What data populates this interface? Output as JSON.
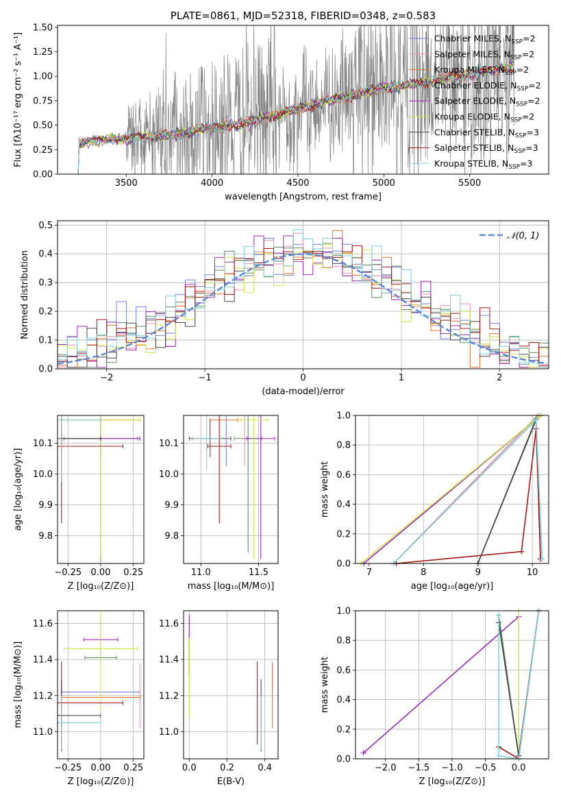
{
  "colors": {
    "chabrier_miles": "#6f7fe0",
    "salpeter_miles": "#ef8fb0",
    "kroupa_miles": "#e8702a",
    "chabrier_elodie": "#5c8a5c",
    "salpeter_elodie": "#9a28b8",
    "kroupa_elodie": "#cbe84a",
    "chabrier_stelib": "#444444",
    "salpeter_stelib": "#a01616",
    "kroupa_stelib": "#7fd0d8",
    "normal": "#5b88d6",
    "grid": "#b0b0b0",
    "data": "#808080"
  },
  "chart_data": [
    {
      "id": "spectrum",
      "type": "line",
      "title": "PLATE=0861, MJD=52318, FIBERID=0348, z=0.583",
      "xlabel": "wavelength [Angstrom, rest frame]",
      "ylabel": "Flux [fλ10⁻¹⁷ erg cm⁻² s⁻¹ A⁻¹]",
      "xlim": [
        3100,
        5960
      ],
      "ylim": [
        0,
        1.52
      ],
      "xticks": [
        3500,
        4000,
        4500,
        5000,
        5500
      ],
      "yticks": [
        0.0,
        0.25,
        0.5,
        0.75,
        1.0,
        1.25,
        1.5
      ],
      "legend_position": "top-right",
      "legend": [
        {
          "label": "Chabrier MILES, N",
          "sub": "SSP",
          "tail": "=2",
          "color_key": "chabrier_miles"
        },
        {
          "label": "Salpeter MILES, N",
          "sub": "SSP",
          "tail": "=2",
          "color_key": "salpeter_miles"
        },
        {
          "label": "Kroupa MILES, N",
          "sub": "SSP",
          "tail": "=2",
          "color_key": "kroupa_miles"
        },
        {
          "label": "Chabrier ELODIE, N",
          "sub": "SSP",
          "tail": "=2",
          "color_key": "chabrier_elodie"
        },
        {
          "label": "Salpeter ELODIE, N",
          "sub": "SSP",
          "tail": "=2",
          "color_key": "salpeter_elodie"
        },
        {
          "label": "Kroupa ELODIE, N",
          "sub": "SSP",
          "tail": "=2",
          "color_key": "kroupa_elodie"
        },
        {
          "label": "Chabrier STELIB, N",
          "sub": "SSP",
          "tail": "=3",
          "color_key": "chabrier_stelib"
        },
        {
          "label": "Salpeter STELIB, N",
          "sub": "SSP",
          "tail": "=3",
          "color_key": "salpeter_stelib"
        },
        {
          "label": "Kroupa STELIB, N",
          "sub": "SSP",
          "tail": "=3",
          "color_key": "kroupa_stelib"
        }
      ],
      "continuum": [
        [
          3220,
          0.0
        ],
        [
          3225,
          0.3
        ],
        [
          3300,
          0.34
        ],
        [
          3400,
          0.36
        ],
        [
          3500,
          0.36
        ],
        [
          3600,
          0.38
        ],
        [
          3700,
          0.4
        ],
        [
          3800,
          0.4
        ],
        [
          3900,
          0.45
        ],
        [
          4000,
          0.47
        ],
        [
          4200,
          0.52
        ],
        [
          4400,
          0.62
        ],
        [
          4600,
          0.72
        ],
        [
          4800,
          0.8
        ],
        [
          5000,
          0.88
        ],
        [
          5200,
          0.93
        ],
        [
          5400,
          0.99
        ],
        [
          5600,
          1.05
        ],
        [
          5760,
          1.1
        ]
      ],
      "noise_regimes": [
        [
          3220,
          3500,
          0.03
        ],
        [
          3500,
          3650,
          0.25
        ],
        [
          3650,
          4400,
          0.45
        ],
        [
          4400,
          4800,
          0.3
        ],
        [
          4800,
          5760,
          0.5
        ]
      ]
    },
    {
      "id": "residuals",
      "type": "histogram",
      "xlabel": "(data-model)/error",
      "ylabel": "Normed distribution",
      "xlim": [
        -2.5,
        2.5
      ],
      "ylim": [
        0,
        0.515
      ],
      "xticks": [
        -2,
        -1,
        0,
        1,
        2
      ],
      "yticks": [
        0.0,
        0.1,
        0.2,
        0.3,
        0.4,
        0.5
      ],
      "legend_position": "top-right",
      "normal_label": "𝒩(0, 1)",
      "bin_width": 0.1
    },
    {
      "id": "age_vs_Z",
      "type": "errorbar",
      "xlabel": "Z [log₁₀(Z/Z⊙)]",
      "ylabel": "age  [log₁₀(age/yr)]",
      "xlim": [
        -0.33,
        0.33
      ],
      "ylim": [
        9.71,
        10.19
      ],
      "xticks": [
        -0.25,
        0.0,
        0.25
      ],
      "xtick_labels": [
        "−0.25",
        "0.00",
        "0.25"
      ],
      "yticks": [
        9.8,
        9.9,
        10.0,
        10.1
      ],
      "points": [
        {
          "c": "chabrier_miles",
          "x": 0.0,
          "y": 10.115,
          "xe": 0.3,
          "ye": 0.06
        },
        {
          "c": "salpeter_miles",
          "x": 0.0,
          "y": 10.115,
          "xe": 0.3,
          "ye": 0.06
        },
        {
          "c": "kroupa_miles",
          "x": 0.0,
          "y": 10.175,
          "xe": 0.3,
          "ye": 0.45
        },
        {
          "c": "chabrier_elodie",
          "x": 0.0,
          "y": 10.115,
          "xe": 0.28,
          "ye": 0.4
        },
        {
          "c": "salpeter_elodie",
          "x": 0.0,
          "y": 10.115,
          "xe": 0.3,
          "ye": 0.39
        },
        {
          "c": "kroupa_elodie",
          "x": 0.0,
          "y": 10.175,
          "xe": 0.3,
          "ye": 0.45
        },
        {
          "c": "chabrier_stelib",
          "x": -0.3,
          "y": 10.115,
          "xe": 0.3,
          "ye": 0.05
        },
        {
          "c": "salpeter_stelib",
          "x": -0.3,
          "y": 10.09,
          "xe": 0.47,
          "ye": 0.25
        },
        {
          "c": "kroupa_stelib",
          "x": -0.3,
          "y": 10.175,
          "xe": 0.3,
          "ye": 0.2
        }
      ]
    },
    {
      "id": "age_vs_mass",
      "type": "errorbar",
      "xlabel": "mass [log₁₀(M/M⊙)]",
      "ylabel": "",
      "xlim": [
        10.85,
        11.67
      ],
      "ylim": [
        9.71,
        10.19
      ],
      "xticks": [
        11.0,
        11.5
      ],
      "xtick_labels": [
        "11.0",
        "11.5"
      ],
      "yticks": [
        9.8,
        9.9,
        10.0,
        10.1
      ],
      "points": [
        {
          "c": "chabrier_miles",
          "x": 11.22,
          "y": 10.115,
          "xe": 0.0,
          "ye": 0.09
        },
        {
          "c": "salpeter_miles",
          "x": 11.38,
          "y": 10.115,
          "xe": 0.0,
          "ye": 0.09
        },
        {
          "c": "kroupa_miles",
          "x": 11.2,
          "y": 10.175,
          "xe": 0.12,
          "ye": 0.0
        },
        {
          "c": "chabrier_elodie",
          "x": 11.41,
          "y": 10.115,
          "xe": 0.12,
          "ye": 0.37
        },
        {
          "c": "salpeter_elodie",
          "x": 11.52,
          "y": 10.115,
          "xe": 0.12,
          "ye": 0.39
        },
        {
          "c": "kroupa_elodie",
          "x": 11.46,
          "y": 10.175,
          "xe": 0.12,
          "ye": 0.45
        },
        {
          "c": "chabrier_stelib",
          "x": 11.08,
          "y": 10.115,
          "xe": 0.18,
          "ye": 0.06
        },
        {
          "c": "salpeter_stelib",
          "x": 11.16,
          "y": 10.09,
          "xe": 0.1,
          "ye": 0.25
        },
        {
          "c": "kroupa_stelib",
          "x": 11.05,
          "y": 10.115,
          "xe": 0.12,
          "ye": 0.1
        }
      ]
    },
    {
      "id": "weight_vs_age",
      "type": "line",
      "xlabel": "age  [log₁₀(age/yr)]",
      "ylabel": "mass weight",
      "xlim": [
        6.75,
        10.3
      ],
      "ylim": [
        0.0,
        1.0
      ],
      "xticks": [
        7,
        8,
        9,
        10
      ],
      "yticks": [
        0.0,
        0.2,
        0.4,
        0.6,
        0.8,
        1.0
      ],
      "series": [
        {
          "c": "chabrier_miles",
          "x": [
            7.45,
            10.1
          ],
          "y": [
            0.0,
            1.0
          ]
        },
        {
          "c": "salpeter_miles",
          "x": [
            7.45,
            10.1
          ],
          "y": [
            0.0,
            1.0
          ]
        },
        {
          "c": "kroupa_miles",
          "x": [
            7.45,
            10.15
          ],
          "y": [
            0.0,
            1.0
          ]
        },
        {
          "c": "chabrier_elodie",
          "x": [
            9.0,
            10.07
          ],
          "y": [
            0.0,
            0.98
          ]
        },
        {
          "c": "salpeter_elodie",
          "x": [
            6.9,
            10.15
          ],
          "y": [
            0.0,
            1.0
          ]
        },
        {
          "c": "kroupa_elodie",
          "x": [
            6.85,
            10.15
          ],
          "y": [
            0.0,
            1.0
          ]
        },
        {
          "c": "chabrier_stelib",
          "x": [
            9.0,
            10.07,
            10.15
          ],
          "y": [
            0.0,
            0.97,
            0.03
          ]
        },
        {
          "c": "salpeter_stelib",
          "x": [
            7.5,
            9.8,
            10.07,
            10.15
          ],
          "y": [
            0.0,
            0.08,
            0.91,
            0.03
          ]
        },
        {
          "c": "kroupa_stelib",
          "x": [
            7.45,
            10.07,
            10.18
          ],
          "y": [
            0.0,
            0.97,
            0.03
          ]
        }
      ]
    },
    {
      "id": "mass_vs_Z",
      "type": "errorbar",
      "xlabel": "Z [log₁₀(Z/Z⊙)]",
      "ylabel": "mass [log₁₀(M/M⊙)]",
      "xlim": [
        -0.33,
        0.33
      ],
      "ylim": [
        10.85,
        11.67
      ],
      "xticks": [
        -0.25,
        0.0,
        0.25
      ],
      "xtick_labels": [
        "−0.25",
        "0.00",
        "0.25"
      ],
      "yticks": [
        11.0,
        11.2,
        11.4,
        11.6
      ],
      "points": [
        {
          "c": "chabrier_miles",
          "x": 0.0,
          "y": 11.22,
          "xe": 0.3,
          "ye": 0.0
        },
        {
          "c": "salpeter_miles",
          "x": 0.3,
          "y": 11.2,
          "xe": 0.0,
          "ye": 0.18
        },
        {
          "c": "kroupa_miles",
          "x": 0.0,
          "y": 11.19,
          "xe": 0.3,
          "ye": 0.0
        },
        {
          "c": "chabrier_elodie",
          "x": 0.0,
          "y": 11.41,
          "xe": 0.12,
          "ye": 0.0
        },
        {
          "c": "salpeter_elodie",
          "x": 0.0,
          "y": 11.51,
          "xe": 0.13,
          "ye": 0.13
        },
        {
          "c": "kroupa_elodie",
          "x": 0.0,
          "y": 11.46,
          "xe": 0.28,
          "ye": 0.35
        },
        {
          "c": "chabrier_stelib",
          "x": -0.3,
          "y": 11.09,
          "xe": 0.3,
          "ye": 0.2
        },
        {
          "c": "salpeter_stelib",
          "x": -0.3,
          "y": 11.16,
          "xe": 0.47,
          "ye": 0.23
        },
        {
          "c": "kroupa_stelib",
          "x": -0.3,
          "y": 11.05,
          "xe": 0.3,
          "ye": 0.15
        }
      ]
    },
    {
      "id": "mass_vs_ebv",
      "type": "errorbar",
      "xlabel": "E(B-V)",
      "ylabel": "",
      "xlim": [
        -0.03,
        0.47
      ],
      "ylim": [
        10.85,
        11.67
      ],
      "xticks": [
        0.0,
        0.2,
        0.4
      ],
      "xtick_labels": [
        "0.0",
        "0.2",
        "0.4"
      ],
      "yticks": [
        11.0,
        11.2,
        11.4,
        11.6
      ],
      "points": [
        {
          "c": "chabrier_miles",
          "x": 0.0,
          "y": 11.48,
          "xe": 0.0,
          "ye": 0.15
        },
        {
          "c": "salpeter_miles",
          "x": 0.44,
          "y": 11.3,
          "xe": 0.0,
          "ye": 0.09
        },
        {
          "c": "kroupa_miles",
          "x": 0.44,
          "y": 11.2,
          "xe": 0.0,
          "ye": 0.18
        },
        {
          "c": "chabrier_elodie",
          "x": 0.0,
          "y": 11.4,
          "xe": 0.0,
          "ye": 0.1
        },
        {
          "c": "salpeter_elodie",
          "x": 0.0,
          "y": 11.52,
          "xe": 0.0,
          "ye": 0.13
        },
        {
          "c": "kroupa_elodie",
          "x": 0.0,
          "y": 11.3,
          "xe": 0.0,
          "ye": 0.22
        },
        {
          "c": "chabrier_stelib",
          "x": 0.38,
          "y": 11.09,
          "xe": 0.0,
          "ye": 0.2
        },
        {
          "c": "salpeter_stelib",
          "x": 0.36,
          "y": 11.16,
          "xe": 0.0,
          "ye": 0.23
        },
        {
          "c": "kroupa_stelib",
          "x": 0.38,
          "y": 11.05,
          "xe": 0.0,
          "ye": 0.15
        }
      ]
    },
    {
      "id": "weight_vs_Z",
      "type": "line",
      "xlabel": "Z [log₁₀(Z/Z⊙)]",
      "ylabel": "mass weight",
      "xlim": [
        -2.45,
        0.45
      ],
      "ylim": [
        0.0,
        1.0
      ],
      "xticks": [
        -2.0,
        -1.5,
        -1.0,
        -0.5,
        0.0
      ],
      "xtick_labels": [
        "−2.0",
        "−1.5",
        "−1.0",
        "−0.5",
        "0.0"
      ],
      "yticks": [
        0.0,
        0.2,
        0.4,
        0.6,
        0.8,
        1.0
      ],
      "series": [
        {
          "c": "chabrier_miles",
          "x": [
            0.0,
            0.3
          ],
          "y": [
            0.02,
            1.0
          ]
        },
        {
          "c": "salpeter_miles",
          "x": [
            0.0,
            0.3
          ],
          "y": [
            0.02,
            1.0
          ]
        },
        {
          "c": "kroupa_miles",
          "x": [
            0.0,
            0.3
          ],
          "y": [
            0.0,
            1.0
          ]
        },
        {
          "c": "chabrier_elodie",
          "x": [
            -0.3,
            0.0
          ],
          "y": [
            0.97,
            0.02
          ]
        },
        {
          "c": "salpeter_elodie",
          "x": [
            -2.33,
            0.0
          ],
          "y": [
            0.04,
            0.96
          ]
        },
        {
          "c": "kroupa_elodie",
          "x": [
            0.0,
            0.0
          ],
          "y": [
            0.0,
            1.0
          ]
        },
        {
          "c": "chabrier_stelib",
          "x": [
            -0.3,
            0.0,
            0.3
          ],
          "y": [
            0.92,
            0.02,
            1.0
          ]
        },
        {
          "c": "salpeter_stelib",
          "x": [
            -0.3,
            0.0,
            0.3
          ],
          "y": [
            0.08,
            0.0,
            1.0
          ]
        },
        {
          "c": "kroupa_stelib",
          "x": [
            -0.3,
            -0.3,
            0.0,
            0.3
          ],
          "y": [
            0.97,
            0.02,
            0.0,
            1.0
          ]
        }
      ]
    }
  ]
}
